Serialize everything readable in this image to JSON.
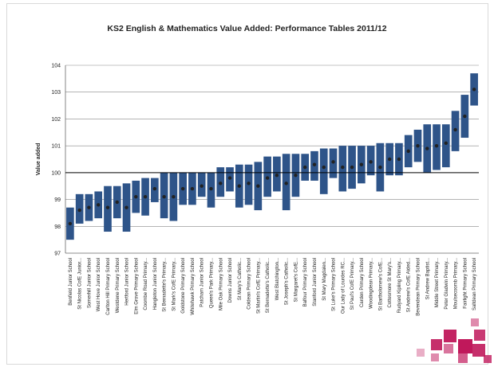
{
  "chart_data": {
    "type": "range-bar",
    "title": "KS2 English & Mathematics Value Added: Performance Tables 2011/12",
    "ylabel": "Value added",
    "xlabel": "",
    "ylim": [
      97,
      104
    ],
    "yticks": [
      97,
      98,
      99,
      100,
      101,
      102,
      103,
      104
    ],
    "reference_line": 100,
    "grid": "horizontal",
    "colors": {
      "bar": "#2e5489",
      "point": "#222222",
      "grid": "#888888",
      "ref": "#000000",
      "deco": "#c0185b"
    },
    "schools": [
      {
        "name": "Benfield Junior School",
        "low": 97.5,
        "high": 98.7,
        "va": 98.1
      },
      {
        "name": "St Nicolas CofE Junior...",
        "low": 98.1,
        "high": 99.2,
        "va": 98.6
      },
      {
        "name": "Somerhill Junior School",
        "low": 98.2,
        "high": 99.2,
        "va": 98.7
      },
      {
        "name": "West Hove Junior School",
        "low": 98.3,
        "high": 99.3,
        "va": 98.8
      },
      {
        "name": "Carlton Hill Primary School",
        "low": 97.8,
        "high": 99.5,
        "va": 98.7
      },
      {
        "name": "Westdene Primary School",
        "low": 98.3,
        "high": 99.5,
        "va": 98.9
      },
      {
        "name": "Hertford Junior School",
        "low": 97.8,
        "high": 99.6,
        "va": 98.7
      },
      {
        "name": "Elm Grove Primary School",
        "low": 98.5,
        "high": 99.7,
        "va": 99.1
      },
      {
        "name": "Coombe Road Primary...",
        "low": 98.4,
        "high": 99.8,
        "va": 99.1
      },
      {
        "name": "Hangleton Junior School",
        "low": 98.9,
        "high": 99.8,
        "va": 99.4
      },
      {
        "name": "St Bernadette's Primary...",
        "low": 98.3,
        "high": 100.0,
        "va": 99.1
      },
      {
        "name": "St Mark's CofE Primary...",
        "low": 98.2,
        "high": 100.0,
        "va": 99.1
      },
      {
        "name": "Goldstone Primary School",
        "low": 98.8,
        "high": 100.0,
        "va": 99.4
      },
      {
        "name": "Whitehawk Primary School",
        "low": 98.8,
        "high": 100.0,
        "va": 99.4
      },
      {
        "name": "Patcham Junior School",
        "low": 99.1,
        "high": 100.0,
        "va": 99.5
      },
      {
        "name": "Queen's Park Primary...",
        "low": 98.7,
        "high": 100.0,
        "va": 99.4
      },
      {
        "name": "Mile Oak Primary School",
        "low": 99.1,
        "high": 100.2,
        "va": 99.6
      },
      {
        "name": "Downs Junior School",
        "low": 99.3,
        "high": 100.2,
        "va": 99.8
      },
      {
        "name": "St Mary's Catholic...",
        "low": 98.7,
        "high": 100.3,
        "va": 99.5
      },
      {
        "name": "Coldean Primary School",
        "low": 98.8,
        "high": 100.3,
        "va": 99.6
      },
      {
        "name": "St Martin's CofE Primary...",
        "low": 98.6,
        "high": 100.4,
        "va": 99.5
      },
      {
        "name": "St Bernadette's Catholic...",
        "low": 99.1,
        "high": 100.6,
        "va": 99.8
      },
      {
        "name": "West Blatchington...",
        "low": 99.3,
        "high": 100.6,
        "va": 99.9
      },
      {
        "name": "St Joseph's Catholic...",
        "low": 98.6,
        "high": 100.7,
        "va": 99.6
      },
      {
        "name": "St Margaret's CofE...",
        "low": 99.1,
        "high": 100.7,
        "va": 99.9
      },
      {
        "name": "Balfour Primary School",
        "low": 99.7,
        "high": 100.7,
        "va": 100.2
      },
      {
        "name": "Stanford Junior School",
        "low": 99.7,
        "high": 100.8,
        "va": 100.3
      },
      {
        "name": "St Mary Magdalen...",
        "low": 99.2,
        "high": 100.9,
        "va": 100.2
      },
      {
        "name": "St Luke's Primary School",
        "low": 99.8,
        "high": 100.9,
        "va": 100.4
      },
      {
        "name": "Our Lady of Lourdes RC...",
        "low": 99.3,
        "high": 101.0,
        "va": 100.2
      },
      {
        "name": "St Paul's CofE Primary...",
        "low": 99.4,
        "high": 101.0,
        "va": 100.2
      },
      {
        "name": "Carden Primary School",
        "low": 99.6,
        "high": 101.0,
        "va": 100.3
      },
      {
        "name": "Woodingdean Primary...",
        "low": 99.9,
        "high": 101.0,
        "va": 100.4
      },
      {
        "name": "St Bartholomew's CofE...",
        "low": 99.3,
        "high": 101.1,
        "va": 100.2
      },
      {
        "name": "Cottesmore St Mary's...",
        "low": 99.9,
        "high": 101.1,
        "va": 100.5
      },
      {
        "name": "Rudyard Kipling Primary...",
        "low": 99.9,
        "high": 101.1,
        "va": 100.5
      },
      {
        "name": "St Andrew's CofE Aided...",
        "low": 100.2,
        "high": 101.4,
        "va": 100.8
      },
      {
        "name": "Bevendean Primary School",
        "low": 100.4,
        "high": 101.6,
        "va": 101.0
      },
      {
        "name": "St Andrew Baptist...",
        "low": 100.0,
        "high": 101.8,
        "va": 100.9
      },
      {
        "name": "Middle Street Primary...",
        "low": 100.1,
        "high": 101.8,
        "va": 101.0
      },
      {
        "name": "Peter Gladwin Primary...",
        "low": 100.2,
        "high": 101.8,
        "va": 101.1
      },
      {
        "name": "Moulsecoomb Primary...",
        "low": 100.8,
        "high": 102.3,
        "va": 101.6
      },
      {
        "name": "Fairlight Primary School",
        "low": 101.3,
        "high": 102.9,
        "va": 102.1
      },
      {
        "name": "Saltdean Primary School",
        "low": 102.5,
        "high": 103.7,
        "va": 103.1
      }
    ]
  }
}
